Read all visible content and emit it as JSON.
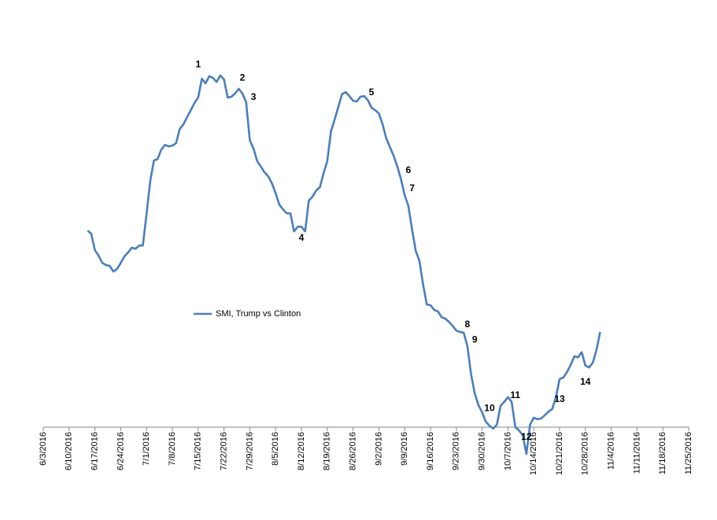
{
  "chart_data": {
    "type": "line",
    "x": [
      "6/15/2016",
      "6/16/2016",
      "6/17/2016",
      "6/18/2016",
      "6/19/2016",
      "6/20/2016",
      "6/21/2016",
      "6/22/2016",
      "6/23/2016",
      "6/24/2016",
      "6/25/2016",
      "6/26/2016",
      "6/27/2016",
      "6/28/2016",
      "6/29/2016",
      "6/30/2016",
      "7/1/2016",
      "7/2/2016",
      "7/3/2016",
      "7/4/2016",
      "7/5/2016",
      "7/6/2016",
      "7/7/2016",
      "7/8/2016",
      "7/9/2016",
      "7/10/2016",
      "7/11/2016",
      "7/12/2016",
      "7/13/2016",
      "7/14/2016",
      "7/15/2016",
      "7/16/2016",
      "7/17/2016",
      "7/18/2016",
      "7/19/2016",
      "7/20/2016",
      "7/21/2016",
      "7/22/2016",
      "7/23/2016",
      "7/24/2016",
      "7/25/2016",
      "7/26/2016",
      "7/27/2016",
      "7/28/2016",
      "7/29/2016",
      "7/30/2016",
      "7/31/2016",
      "8/1/2016",
      "8/2/2016",
      "8/3/2016",
      "8/4/2016",
      "8/5/2016",
      "8/6/2016",
      "8/7/2016",
      "8/8/2016",
      "8/9/2016",
      "8/10/2016",
      "8/11/2016",
      "8/12/2016",
      "8/13/2016",
      "8/14/2016",
      "8/15/2016",
      "8/16/2016",
      "8/17/2016",
      "8/18/2016",
      "8/19/2016",
      "8/20/2016",
      "8/21/2016",
      "8/22/2016",
      "8/23/2016",
      "8/24/2016",
      "8/25/2016",
      "8/26/2016",
      "8/27/2016",
      "8/28/2016",
      "8/29/2016",
      "8/30/2016",
      "8/31/2016",
      "9/1/2016",
      "9/2/2016",
      "9/3/2016",
      "9/4/2016",
      "9/5/2016",
      "9/6/2016",
      "9/7/2016",
      "9/8/2016",
      "9/9/2016",
      "9/10/2016",
      "9/11/2016",
      "9/12/2016",
      "9/13/2016",
      "9/14/2016",
      "9/15/2016",
      "9/16/2016",
      "9/17/2016",
      "9/18/2016",
      "9/19/2016",
      "9/20/2016",
      "9/21/2016",
      "9/22/2016",
      "9/23/2016",
      "9/24/2016",
      "9/25/2016",
      "9/26/2016",
      "9/27/2016",
      "9/28/2016",
      "9/29/2016",
      "9/30/2016",
      "10/1/2016",
      "10/2/2016",
      "10/3/2016",
      "10/4/2016",
      "10/5/2016",
      "10/6/2016",
      "10/7/2016",
      "10/8/2016",
      "10/9/2016",
      "10/10/2016",
      "10/11/2016",
      "10/12/2016",
      "10/13/2016",
      "10/14/2016",
      "10/15/2016",
      "10/16/2016",
      "10/17/2016",
      "10/18/2016",
      "10/19/2016",
      "10/20/2016",
      "10/21/2016",
      "10/22/2016",
      "10/23/2016",
      "10/24/2016",
      "10/25/2016",
      "10/26/2016",
      "10/27/2016",
      "10/28/2016",
      "10/29/2016",
      "10/30/2016",
      "10/31/2016",
      "11/1/2016"
    ],
    "series": [
      {
        "name": "SMI, Trump vs Clinton",
        "color": "#4a7ebb",
        "values": [
          54.3,
          53.5,
          48.9,
          47.4,
          45.4,
          44.8,
          44.6,
          43.0,
          43.7,
          45.4,
          47.2,
          48.3,
          49.6,
          49.3,
          50.2,
          50.2,
          58.9,
          68.0,
          73.7,
          74.1,
          76.7,
          78.0,
          77.6,
          77.8,
          78.5,
          82.4,
          83.7,
          85.7,
          87.6,
          89.6,
          91.1,
          96.3,
          95.0,
          97.0,
          96.5,
          95.4,
          97.2,
          96.1,
          91.1,
          91.3,
          92.2,
          93.5,
          92.2,
          89.8,
          79.3,
          77.0,
          73.5,
          72.0,
          70.4,
          69.3,
          67.4,
          64.6,
          61.5,
          60.2,
          59.1,
          59.1,
          54.1,
          55.4,
          55.4,
          54.1,
          62.6,
          63.7,
          65.4,
          66.3,
          70.2,
          73.5,
          81.7,
          85.0,
          88.5,
          92.0,
          92.6,
          91.5,
          90.2,
          90.0,
          91.3,
          91.5,
          90.4,
          88.3,
          87.6,
          86.7,
          83.7,
          79.8,
          77.4,
          75.0,
          72.0,
          68.5,
          64.1,
          61.1,
          54.6,
          48.7,
          45.9,
          39.3,
          33.9,
          33.7,
          32.4,
          32.0,
          30.4,
          30.0,
          29.1,
          28.0,
          26.7,
          26.3,
          26.1,
          22.4,
          14.6,
          9.3,
          6.1,
          4.1,
          1.5,
          0.4,
          -0.4,
          0.7,
          5.9,
          7.0,
          8.3,
          7.0,
          0.0,
          -0.9,
          -2.2,
          -7.4,
          0.7,
          2.6,
          2.2,
          2.4,
          3.3,
          4.3,
          5.0,
          8.3,
          13.3,
          13.7,
          15.2,
          17.2,
          19.6,
          19.3,
          20.7,
          17.0,
          16.5,
          17.8,
          21.3,
          26.3
        ]
      }
    ],
    "xlim": [
      "6/3/2016",
      "11/25/2016"
    ],
    "xticks": [
      "6/3/2016",
      "6/10/2016",
      "6/17/2016",
      "6/24/2016",
      "7/1/2016",
      "7/8/2016",
      "7/15/2016",
      "7/22/2016",
      "7/29/2016",
      "8/5/2016",
      "8/12/2016",
      "8/19/2016",
      "8/26/2016",
      "9/2/2016",
      "9/9/2016",
      "9/16/2016",
      "9/23/2016",
      "9/30/2016",
      "10/7/2016",
      "10/14/2016",
      "10/21/2016",
      "10/28/2016",
      "11/4/2016",
      "11/11/2016",
      "11/18/2016",
      "11/25/2016"
    ],
    "ylim": [
      -10,
      100
    ],
    "legend": "left",
    "annotations": [
      {
        "text": "1",
        "x": "7/15/2016",
        "y": 100.2
      },
      {
        "text": "2",
        "x": "7/27/2016",
        "y": 96.5
      },
      {
        "text": "3",
        "x": "7/30/2016",
        "y": 91.1
      },
      {
        "text": "4",
        "x": "8/12/2016",
        "y": 52.2
      },
      {
        "text": "5",
        "x": "8/31/2016",
        "y": 92.4
      },
      {
        "text": "6",
        "x": "9/10/2016",
        "y": 70.9
      },
      {
        "text": "7",
        "x": "9/11/2016",
        "y": 65.9
      },
      {
        "text": "8",
        "x": "9/26/2016",
        "y": 28.3
      },
      {
        "text": "9",
        "x": "9/28/2016",
        "y": 24.1
      },
      {
        "text": "10",
        "x": "10/2/2016",
        "y": 5.2
      },
      {
        "text": "11",
        "x": "10/9/2016",
        "y": 8.7
      },
      {
        "text": "12",
        "x": "10/12/2016",
        "y": -2.8
      },
      {
        "text": "13",
        "x": "10/21/2016",
        "y": 7.6
      },
      {
        "text": "14",
        "x": "10/28/2016",
        "y": 12.4
      }
    ]
  }
}
